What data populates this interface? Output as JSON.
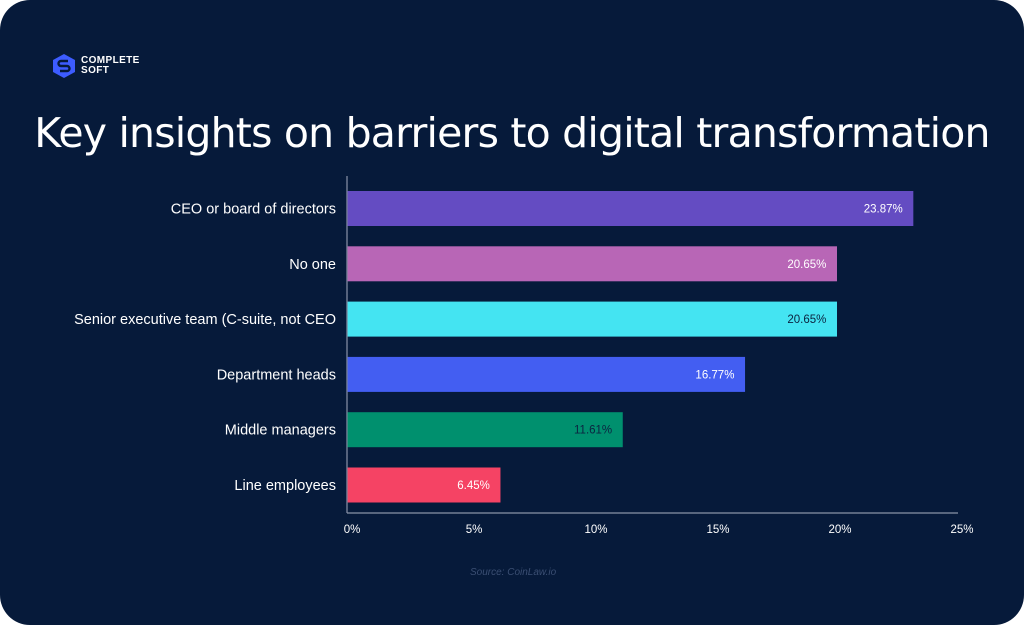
{
  "brand": {
    "logo_icon": "hexagon-s-logo-icon",
    "name_line1": "COMPLETE",
    "name_line2": "SOFT",
    "accent_color": "#3d5cff"
  },
  "background_color": "#061a3a",
  "source": "Source: CoinLaw.io",
  "chart_data": {
    "type": "bar",
    "orientation": "horizontal",
    "title": "Key insights on barriers to digital transformation",
    "xlabel": "",
    "ylabel": "",
    "categories": [
      "CEO or board of directors",
      "No one",
      "Senior executive team (C-suite, not CEO",
      "Department heads",
      "Middle managers",
      "Line employees"
    ],
    "values": [
      23.87,
      20.65,
      20.65,
      16.77,
      11.61,
      6.45
    ],
    "data_labels": [
      "23.87%",
      "20.65%",
      "20.65%",
      "16.77%",
      "11.61%",
      "6.45%"
    ],
    "colors": [
      "#644cc2",
      "#b866b6",
      "#44e4f2",
      "#435ef2",
      "#00906e",
      "#f54364"
    ],
    "label_colors": [
      "#ffffff",
      "#ffffff",
      "#0b2340",
      "#ffffff",
      "#0b2340",
      "#ffffff"
    ],
    "xlim": [
      0,
      25
    ],
    "xticks": [
      0,
      5,
      10,
      15,
      20,
      25
    ],
    "xtick_labels": [
      "0%",
      "5%",
      "10%",
      "15%",
      "20%",
      "25%"
    ],
    "grid": false,
    "legend": "none"
  }
}
